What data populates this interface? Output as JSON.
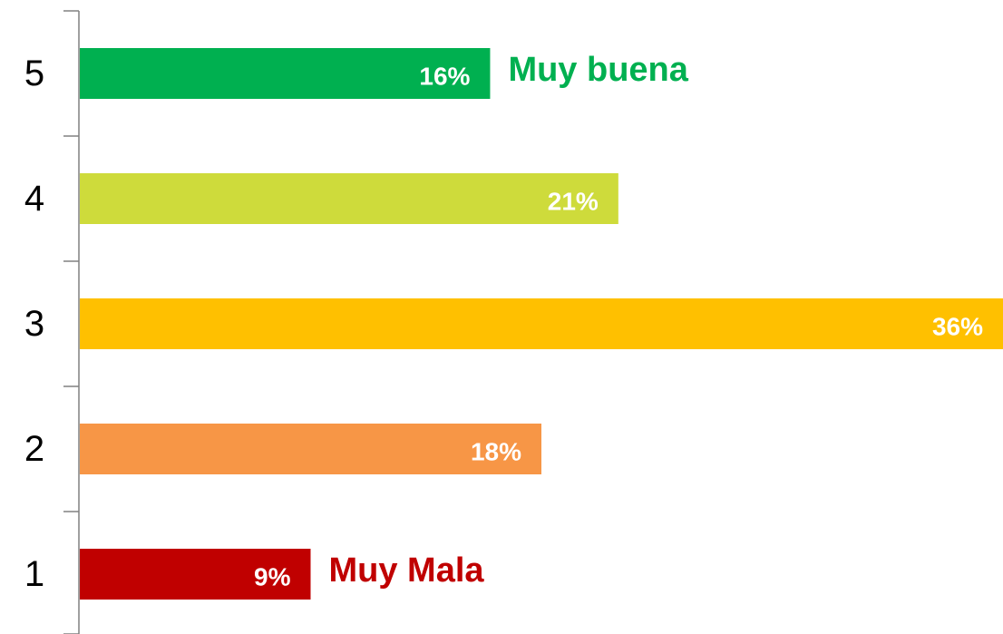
{
  "chart_data": {
    "type": "barh",
    "categories": [
      "5",
      "4",
      "3",
      "2",
      "1"
    ],
    "values": [
      16,
      21,
      36,
      18,
      9
    ],
    "value_labels": [
      "16%",
      "21%",
      "36%",
      "18%",
      "9%"
    ],
    "colors": [
      "#00b050",
      "#cedb3b",
      "#ffc000",
      "#f79646",
      "#c00000"
    ],
    "annotations": [
      {
        "text": "Muy buena",
        "category": "5",
        "color": "#00b050"
      },
      {
        "text": "Muy Mala",
        "category": "1",
        "color": "#c00000"
      }
    ]
  }
}
